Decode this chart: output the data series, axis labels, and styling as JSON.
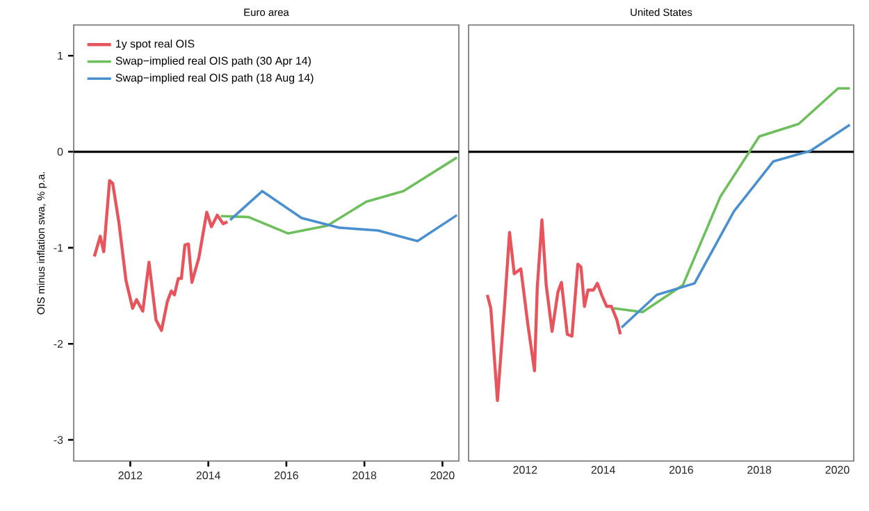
{
  "chart_data": [
    {
      "type": "line",
      "title": "Euro area",
      "ylabel": "OIS minus inflation swa, % p.a.",
      "xlim": [
        2010.55,
        2020.42
      ],
      "ylim": [
        -3.22,
        1.32
      ],
      "xticks": [
        2012,
        2014,
        2016,
        2018,
        2020
      ],
      "yticks": [
        -3,
        -2,
        -1,
        0,
        1
      ],
      "legend": "top left",
      "ref_lines": [
        {
          "axis": "y",
          "value": 0,
          "color": "#000000"
        }
      ],
      "series": [
        {
          "name": "1y spot real OIS",
          "color": "#e8545c",
          "x": [
            2011.08,
            2011.23,
            2011.32,
            2011.47,
            2011.55,
            2011.71,
            2011.89,
            2012.06,
            2012.16,
            2012.32,
            2012.48,
            2012.66,
            2012.8,
            2012.95,
            2013.05,
            2013.13,
            2013.23,
            2013.31,
            2013.4,
            2013.49,
            2013.58,
            2013.76,
            2013.96,
            2014.08,
            2014.23,
            2014.38,
            2014.49
          ],
          "values": [
            -1.09,
            -0.88,
            -1.04,
            -0.3,
            -0.33,
            -0.74,
            -1.34,
            -1.63,
            -1.54,
            -1.66,
            -1.15,
            -1.75,
            -1.86,
            -1.56,
            -1.45,
            -1.49,
            -1.32,
            -1.32,
            -0.97,
            -0.96,
            -1.36,
            -1.1,
            -0.63,
            -0.78,
            -0.66,
            -0.75,
            -0.73
          ]
        },
        {
          "name": "Swap−implied real OIS path (30 Apr 14)",
          "color": "#6cbf5a",
          "x": [
            2014.32,
            2015.03,
            2016.04,
            2017.05,
            2018.05,
            2019.0,
            2020.37
          ],
          "values": [
            -0.67,
            -0.68,
            -0.85,
            -0.77,
            -0.52,
            -0.41,
            -0.06
          ]
        },
        {
          "name": "Swap−implied real OIS path (18 Aug 14)",
          "color": "#4a90d0",
          "x": [
            2014.56,
            2015.38,
            2016.39,
            2017.34,
            2018.35,
            2019.36,
            2020.37
          ],
          "values": [
            -0.71,
            -0.41,
            -0.69,
            -0.79,
            -0.82,
            -0.93,
            -0.66
          ]
        }
      ]
    },
    {
      "type": "line",
      "title": "United States",
      "xlim": [
        2010.55,
        2020.42
      ],
      "ylim": [
        -3.22,
        1.32
      ],
      "xticks": [
        2012,
        2014,
        2016,
        2018,
        2020
      ],
      "yticks": [
        -3,
        -2,
        -1,
        0,
        1
      ],
      "tick_labels": "x",
      "ref_lines": [
        {
          "axis": "y",
          "value": 0,
          "color": "#000000"
        }
      ],
      "series": [
        {
          "color": "#e8545c",
          "x": [
            2011.03,
            2011.12,
            2011.29,
            2011.48,
            2011.6,
            2011.72,
            2011.89,
            2012.07,
            2012.24,
            2012.31,
            2012.43,
            2012.54,
            2012.69,
            2012.84,
            2012.93,
            2013.08,
            2013.2,
            2013.35,
            2013.43,
            2013.52,
            2013.61,
            2013.75,
            2013.85,
            2013.97,
            2014.09,
            2014.21,
            2014.35,
            2014.44
          ],
          "values": [
            -1.49,
            -1.63,
            -2.59,
            -1.56,
            -0.84,
            -1.27,
            -1.22,
            -1.8,
            -2.28,
            -1.42,
            -0.71,
            -1.39,
            -1.87,
            -1.46,
            -1.36,
            -1.9,
            -1.92,
            -1.17,
            -1.2,
            -1.61,
            -1.44,
            -1.44,
            -1.37,
            -1.5,
            -1.61,
            -1.61,
            -1.75,
            -1.9
          ]
        },
        {
          "color": "#6cbf5a",
          "x": [
            2014.27,
            2015.01,
            2016.04,
            2017.0,
            2018.0,
            2019.01,
            2020.02,
            2020.32
          ],
          "values": [
            -1.63,
            -1.67,
            -1.39,
            -0.47,
            0.16,
            0.29,
            0.66,
            0.66
          ]
        },
        {
          "color": "#4a90d0",
          "x": [
            2014.47,
            2015.37,
            2016.34,
            2017.35,
            2018.36,
            2019.31,
            2020.32
          ],
          "values": [
            -1.83,
            -1.49,
            -1.37,
            -0.62,
            -0.1,
            0.01,
            0.28
          ]
        }
      ]
    }
  ]
}
